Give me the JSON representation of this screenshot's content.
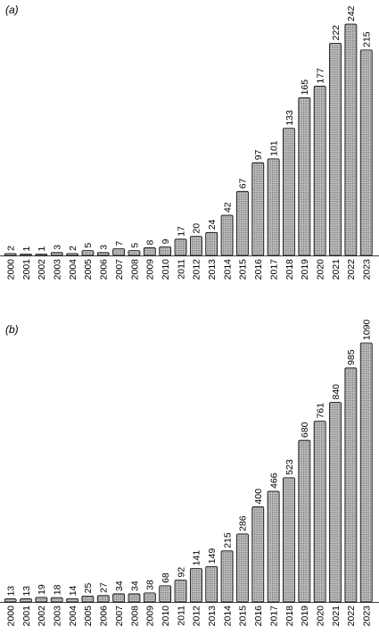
{
  "chart_data": [
    {
      "type": "bar",
      "panel_label": "(a)",
      "categories": [
        "2000",
        "2001",
        "2002",
        "2003",
        "2004",
        "2005",
        "2006",
        "2007",
        "2008",
        "2009",
        "2010",
        "2011",
        "2012",
        "2013",
        "2014",
        "2015",
        "2016",
        "2017",
        "2018",
        "2019",
        "2020",
        "2021",
        "2022",
        "2023"
      ],
      "values": [
        2,
        1,
        1,
        3,
        2,
        5,
        3,
        7,
        5,
        8,
        9,
        17,
        20,
        24,
        42,
        67,
        97,
        101,
        133,
        165,
        177,
        222,
        242,
        215
      ],
      "ylim": [
        0,
        242
      ]
    },
    {
      "type": "bar",
      "panel_label": "(b)",
      "categories": [
        "2000",
        "2001",
        "2002",
        "2003",
        "2004",
        "2005",
        "2006",
        "2007",
        "2008",
        "2009",
        "2010",
        "2011",
        "2012",
        "2013",
        "2014",
        "2015",
        "2016",
        "2017",
        "2018",
        "2019",
        "2020",
        "2021",
        "2022",
        "2023"
      ],
      "values": [
        13,
        13,
        19,
        18,
        14,
        25,
        27,
        34,
        34,
        38,
        68,
        92,
        141,
        149,
        215,
        286,
        400,
        466,
        523,
        680,
        761,
        840,
        985,
        1090
      ],
      "ylim": [
        0,
        1090
      ]
    }
  ]
}
